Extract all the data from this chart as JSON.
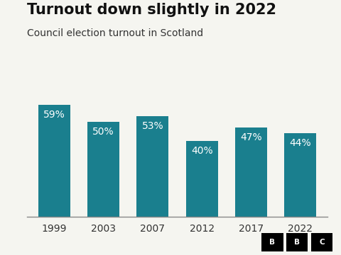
{
  "title": "Turnout down slightly in 2022",
  "subtitle": "Council election turnout in Scotland",
  "categories": [
    "1999",
    "2003",
    "2007",
    "2012",
    "2017",
    "2022"
  ],
  "values": [
    59,
    50,
    53,
    40,
    47,
    44
  ],
  "labels": [
    "59%",
    "50%",
    "53%",
    "40%",
    "47%",
    "44%"
  ],
  "bar_color": "#1a7f8e",
  "background_color": "#f5f5f0",
  "title_fontsize": 15,
  "subtitle_fontsize": 10,
  "label_fontsize": 10,
  "tick_fontsize": 10,
  "ylim": [
    0,
    70
  ],
  "bar_width": 0.65,
  "label_text_color": "#ffffff",
  "axis_color": "#333333",
  "spine_color": "#888888"
}
